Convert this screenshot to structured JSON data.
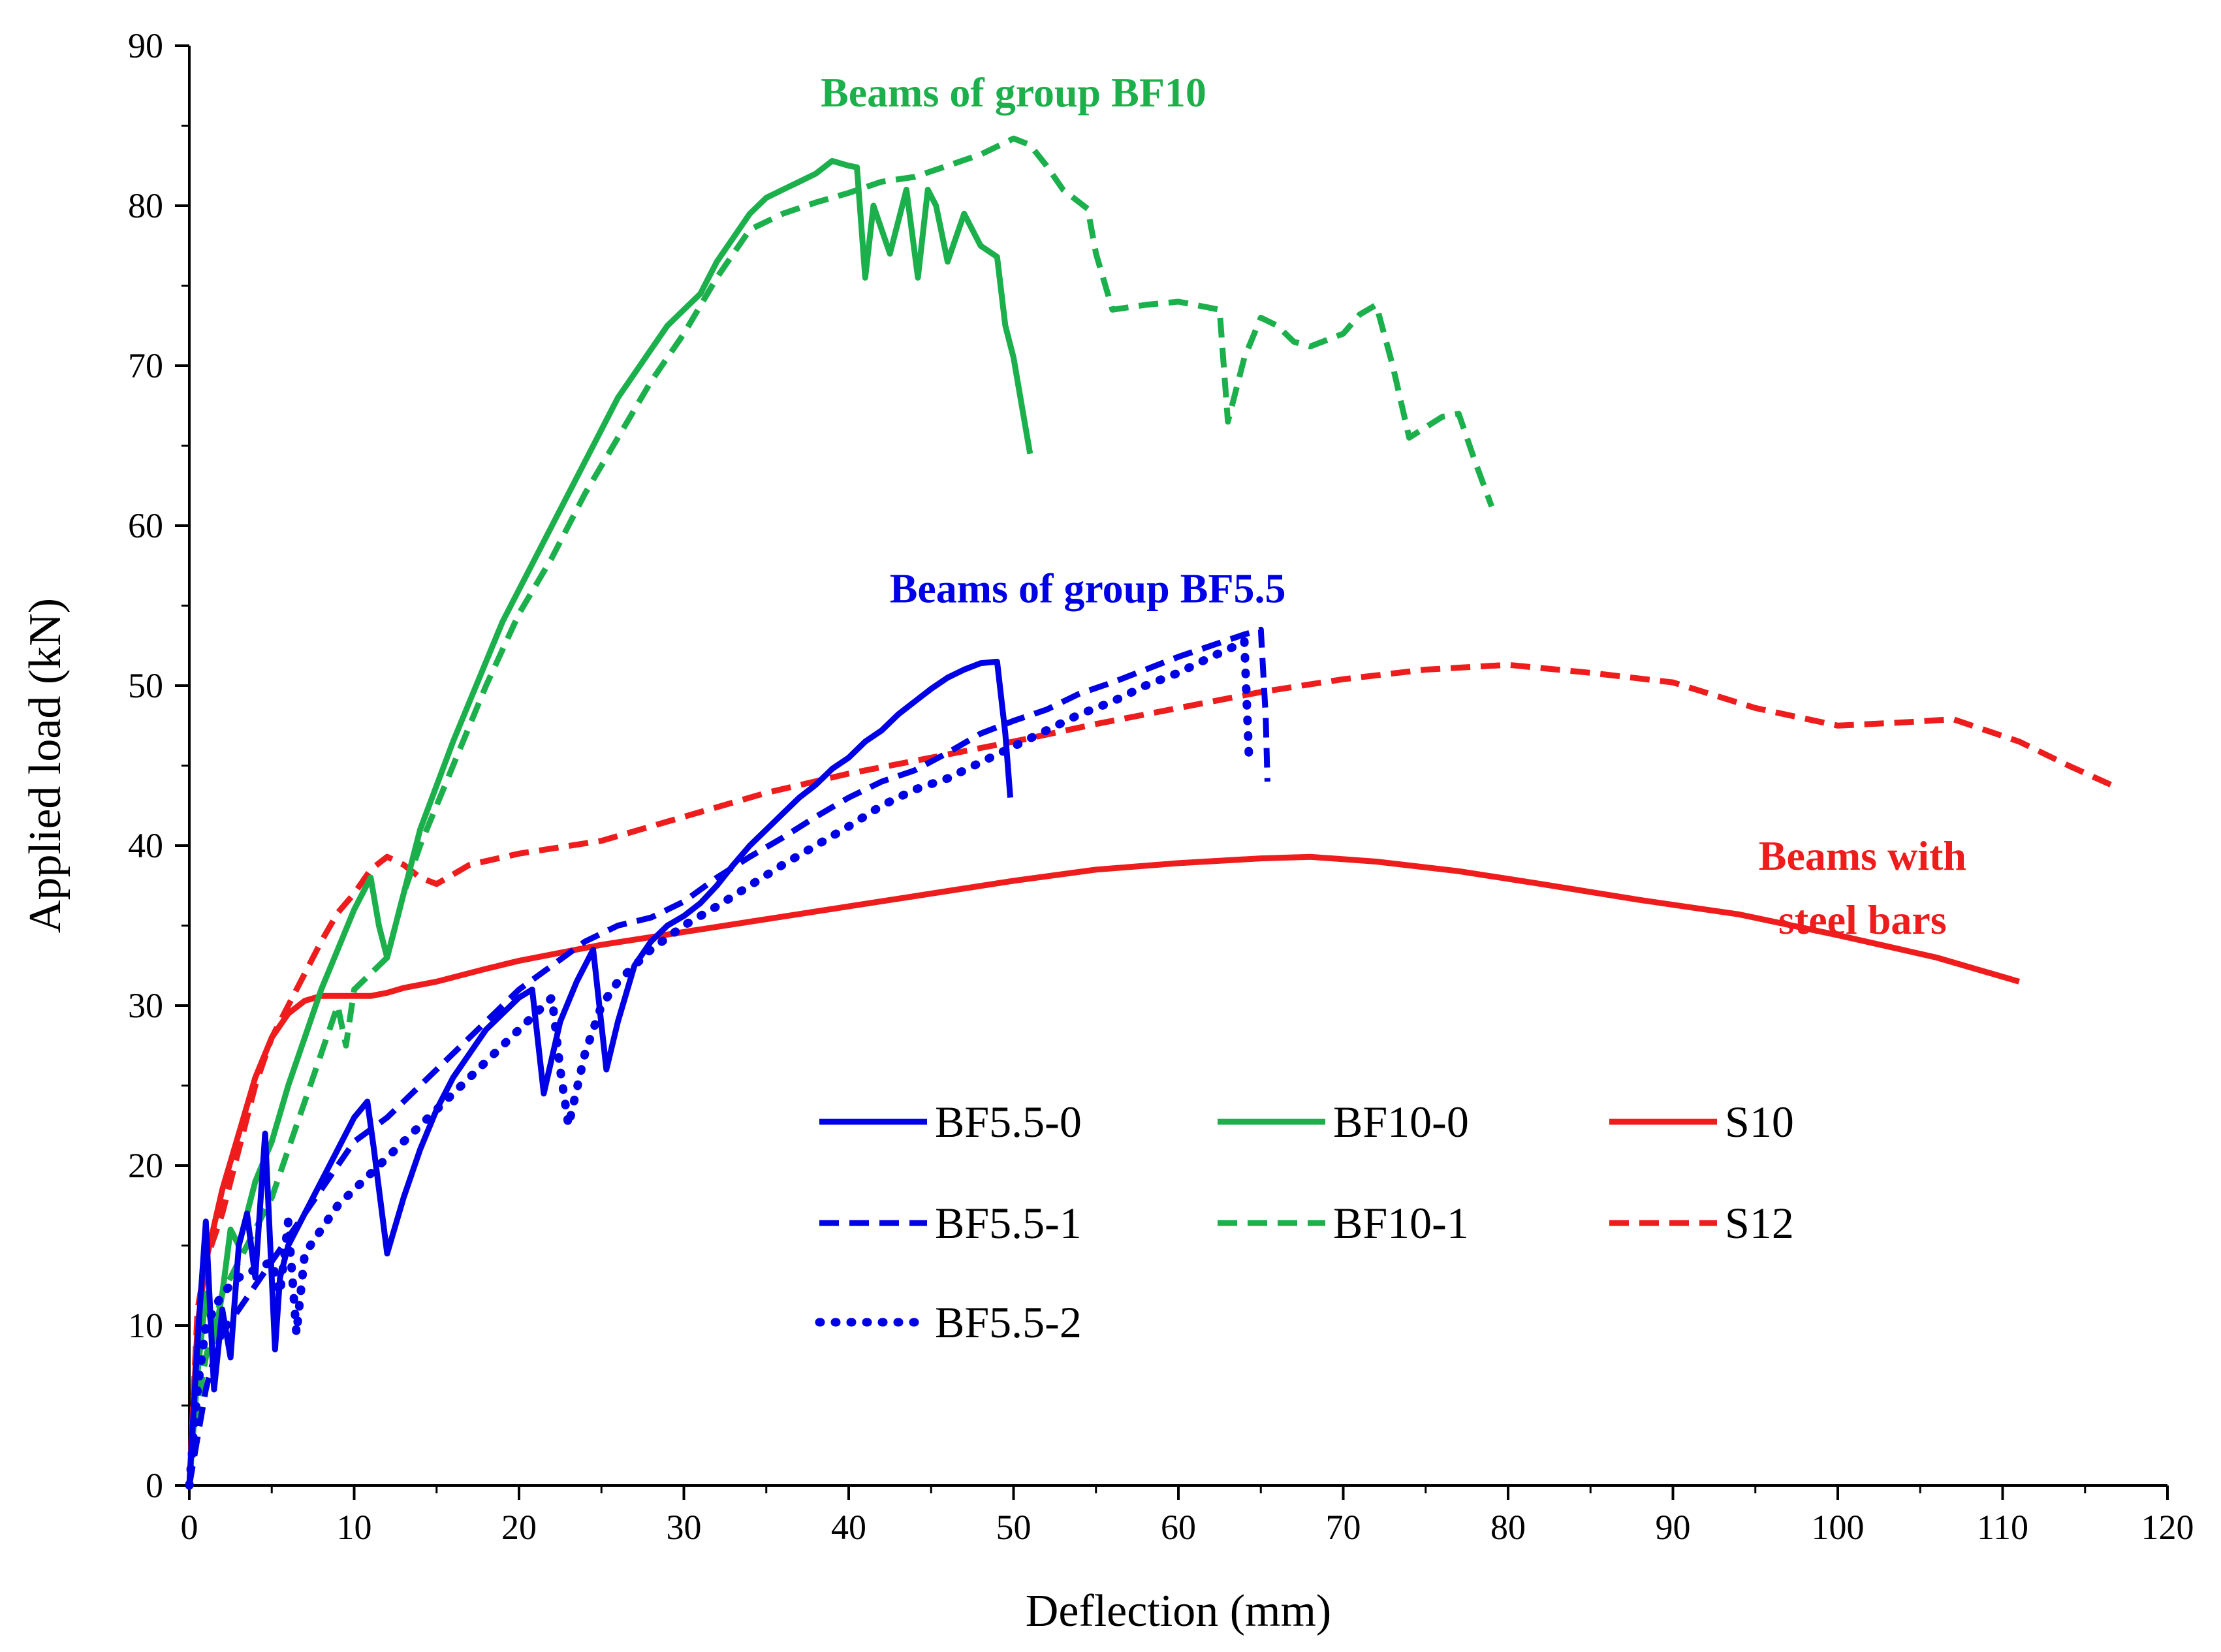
{
  "chart_data": {
    "type": "line",
    "title": "",
    "xlabel": "Deflection (mm)",
    "ylabel": "Applied load (kN)",
    "xlim": [
      0,
      120
    ],
    "ylim": [
      0,
      90
    ],
    "xticks": [
      0,
      10,
      20,
      30,
      40,
      50,
      60,
      70,
      80,
      90,
      100,
      110,
      120
    ],
    "yticks": [
      0,
      10,
      20,
      30,
      40,
      50,
      60,
      70,
      80,
      90
    ],
    "grid": false,
    "legend_position": "lower-right",
    "annotations": [
      {
        "text": "Beams of group BF10",
        "color": "#1bb04b",
        "x": 50.0,
        "y": 86.2,
        "lines": [
          "Beams of group BF10"
        ]
      },
      {
        "text": "Beams of group BF5.5",
        "color": "#0000e6",
        "x": 54.5,
        "y": 55.2,
        "lines": [
          "Beams of group BF5.5"
        ]
      },
      {
        "text": "Beams with steel bars",
        "color": "#ee1c1c",
        "x": 101.5,
        "y": 38.5,
        "lines": [
          "Beams with",
          "steel bars"
        ]
      }
    ],
    "series": [
      {
        "name": "BF5.5-0",
        "color": "#0000e6",
        "dash": "solid",
        "x": [
          0,
          0.5,
          1.0,
          1.5,
          2.0,
          2.5,
          3.0,
          3.5,
          4.0,
          4.6,
          5.2,
          5.5,
          6.0,
          7.0,
          8.0,
          9.0,
          10.0,
          10.8,
          11.2,
          12.0,
          13.0,
          14.0,
          15.0,
          16.0,
          17.0,
          18.0,
          19.0,
          20.0,
          20.8,
          21.5,
          22.5,
          23.5,
          24.5,
          25.3,
          26.0,
          27.0,
          28.0,
          29.0,
          30.0,
          31.0,
          32.0,
          33.0,
          34.0,
          35.0,
          36.0,
          37.0,
          38.0,
          39.0,
          40.0,
          41.0,
          42.0,
          43.0,
          44.0,
          45.0,
          46.0,
          47.0,
          48.0,
          49.0,
          49.5,
          49.8
        ],
        "y": [
          0,
          9,
          16.5,
          6,
          11,
          8,
          15,
          17,
          13,
          22,
          8.5,
          13,
          15,
          17,
          19,
          21,
          23,
          24,
          21,
          14.5,
          18,
          21,
          23.5,
          25.5,
          27,
          28.5,
          29.5,
          30.5,
          31,
          24.5,
          29,
          31.5,
          33.5,
          26,
          29,
          32.5,
          34.0,
          35.0,
          35.6,
          36.4,
          37.5,
          38.8,
          40.0,
          41.0,
          42.0,
          43.0,
          43.8,
          44.8,
          45.5,
          46.5,
          47.2,
          48.2,
          49.0,
          49.8,
          50.5,
          51.0,
          51.4,
          51.5,
          47.0,
          43.0
        ]
      },
      {
        "name": "BF5.5-1",
        "color": "#0000e6",
        "dash": "dash",
        "x": [
          0,
          0.5,
          1.0,
          1.5,
          2.0,
          3.0,
          4.0,
          5.0,
          6.0,
          7.0,
          8.0,
          9.0,
          10.0,
          12.0,
          14.0,
          16.0,
          18.0,
          20.0,
          22.0,
          24.0,
          26.0,
          28.0,
          30.0,
          32.0,
          34.0,
          36.0,
          38.0,
          40.0,
          42.0,
          44.0,
          46.0,
          48.0,
          50.0,
          52.0,
          54.0,
          56.0,
          58.0,
          60.0,
          62.0,
          64.0,
          65.0,
          65.3,
          65.4
        ],
        "y": [
          0,
          3,
          6,
          8,
          9.5,
          11,
          12.5,
          14,
          15.5,
          17,
          18.5,
          20,
          21.5,
          23,
          25,
          27,
          29,
          31,
          32.5,
          34,
          35,
          35.5,
          36.5,
          38,
          39.3,
          40.5,
          41.8,
          43,
          44,
          44.7,
          45.8,
          47,
          47.8,
          48.5,
          49.5,
          50.2,
          51.0,
          51.8,
          52.5,
          53.2,
          53.5,
          48.0,
          44.0
        ]
      },
      {
        "name": "BF5.5-2",
        "color": "#0000e6",
        "dash": "dot",
        "x": [
          0,
          0.5,
          1.0,
          2.0,
          3.0,
          4.0,
          5.0,
          5.5,
          6.0,
          6.5,
          7.0,
          8.0,
          9.0,
          10.0,
          11.0,
          12.0,
          13.0,
          14.0,
          15.0,
          16.0,
          18.0,
          20.0,
          21.0,
          22.0,
          22.5,
          23.0,
          24.0,
          25.0,
          26.0,
          27.0,
          28.0,
          30.0,
          32.0,
          34.0,
          36.0,
          38.0,
          40.0,
          42.0,
          44.0,
          46.0,
          48.0,
          50.0,
          52.0,
          54.0,
          56.0,
          58.0,
          60.0,
          62.0,
          63.5,
          64.0,
          64.3
        ],
        "y": [
          0,
          6,
          10,
          12,
          13,
          13.5,
          14,
          12,
          16.5,
          9.5,
          14.5,
          16,
          17.5,
          18.5,
          19.5,
          20.5,
          21.5,
          22.5,
          23.5,
          24.5,
          26.5,
          28.5,
          29.5,
          30.5,
          26,
          22.5,
          27,
          30,
          31.5,
          32.5,
          33.5,
          35.0,
          36.2,
          37.5,
          38.8,
          40,
          41.2,
          42.5,
          43.5,
          44.2,
          45.2,
          46.2,
          47.2,
          48.2,
          49.0,
          50.0,
          50.8,
          51.8,
          52.5,
          52.8,
          45.0
        ]
      },
      {
        "name": "BF10-0",
        "color": "#1bb04b",
        "dash": "solid",
        "x": [
          0,
          0.5,
          1.0,
          1.5,
          2.0,
          2.5,
          3.0,
          3.5,
          4.0,
          5.0,
          6.0,
          7.0,
          8.0,
          9.0,
          10.0,
          11.0,
          11.5,
          12.0,
          13.0,
          14.0,
          16.0,
          18.0,
          19.0,
          20.0,
          22.0,
          24.0,
          26.0,
          28.0,
          29.0,
          30.0,
          31.0,
          32.0,
          33.0,
          34.0,
          35.0,
          36.0,
          37.0,
          38.0,
          39.0,
          40.0,
          40.5,
          41.0,
          41.5,
          42.5,
          43.5,
          44.2,
          44.8,
          45.3,
          46.0,
          47.0,
          48.0,
          49.0,
          49.5,
          50.0,
          50.5,
          51.0
        ],
        "y": [
          0,
          7,
          12,
          9,
          12,
          16,
          15,
          17,
          19,
          21.5,
          25,
          28,
          31,
          33.5,
          36,
          38,
          35,
          33,
          37,
          41,
          46.5,
          51.5,
          54,
          56,
          60,
          64,
          68,
          71,
          72.5,
          73.5,
          74.5,
          76.5,
          78.0,
          79.5,
          80.5,
          81.0,
          81.5,
          82.0,
          82.8,
          82.5,
          82.4,
          75.5,
          80.0,
          77.0,
          81.0,
          75.5,
          81.0,
          80.0,
          76.5,
          79.5,
          77.5,
          76.8,
          72.5,
          70.5,
          67.5,
          64.5
        ]
      },
      {
        "name": "BF10-1",
        "color": "#1bb04b",
        "dash": "dash",
        "x": [
          0,
          0.5,
          1.0,
          1.5,
          2.0,
          3.0,
          4.0,
          5.0,
          6.0,
          7.0,
          8.0,
          9.0,
          9.5,
          10.0,
          11.0,
          12.0,
          13.0,
          14.0,
          16.0,
          18.0,
          20.0,
          22.0,
          24.0,
          26.0,
          28.0,
          30.0,
          32.0,
          34.0,
          36.0,
          38.0,
          40.0,
          42.0,
          44.0,
          46.0,
          48.0,
          50.0,
          51.0,
          52.0,
          53.0,
          54.5,
          55.0,
          56.0,
          58.0,
          60.0,
          61.0,
          62.5,
          63.0,
          64.0,
          65.0,
          66.0,
          67.0,
          68.0,
          70.0,
          71.0,
          72.0,
          73.0,
          74.0,
          76.0,
          77.0,
          78.0,
          79.0
        ],
        "y": [
          0,
          5,
          8,
          10,
          12,
          14,
          16,
          18,
          21,
          24,
          27,
          30,
          27.5,
          31,
          32,
          33,
          37,
          40,
          45,
          50,
          54.5,
          58.0,
          62,
          65.5,
          69,
          72,
          75.5,
          78.5,
          79.5,
          80.2,
          80.8,
          81.5,
          81.8,
          82.5,
          83.2,
          84.2,
          83.8,
          82.5,
          81.0,
          79.8,
          77.0,
          73.5,
          73.8,
          74.0,
          73.8,
          73.5,
          66.5,
          70.5,
          73.0,
          72.5,
          71.5,
          71.2,
          72.0,
          73.2,
          73.8,
          70.0,
          65.5,
          66.8,
          67.0,
          64.0,
          61.2
        ]
      },
      {
        "name": "S10",
        "color": "#ee1c1c",
        "dash": "solid",
        "x": [
          0,
          0.5,
          1.0,
          2.0,
          3.0,
          4.0,
          5.0,
          6.0,
          7.0,
          8.0,
          9.0,
          10.0,
          11.0,
          12.0,
          13.0,
          15.0,
          18.0,
          20.0,
          25.0,
          30.0,
          35.0,
          40.0,
          45.0,
          50.0,
          55.0,
          60.0,
          65.0,
          68.0,
          72.0,
          77.0,
          82.0,
          88.0,
          94.0,
          100.0,
          106.0,
          111.0
        ],
        "y": [
          0,
          10,
          14,
          18.5,
          22,
          25.5,
          28,
          29.5,
          30.3,
          30.6,
          30.6,
          30.6,
          30.6,
          30.8,
          31.1,
          31.5,
          32.3,
          32.8,
          33.8,
          34.6,
          35.4,
          36.2,
          37.0,
          37.8,
          38.5,
          38.9,
          39.2,
          39.3,
          39.0,
          38.4,
          37.6,
          36.6,
          35.7,
          34.4,
          33.0,
          31.5
        ]
      },
      {
        "name": "S12",
        "color": "#ee1c1c",
        "dash": "dash",
        "x": [
          0,
          0.5,
          1.0,
          2.0,
          3.0,
          4.0,
          5.0,
          6.0,
          7.0,
          8.0,
          9.0,
          10.0,
          11.0,
          12.0,
          13.0,
          14.0,
          15.0,
          17.0,
          20.0,
          25.0,
          30.0,
          35.0,
          40.0,
          45.0,
          50.0,
          55.0,
          60.0,
          65.0,
          70.0,
          75.0,
          80.0,
          85.0,
          90.0,
          95.0,
          100.0,
          104.0,
          107.0,
          111.0,
          114.0,
          117.0
        ],
        "y": [
          0,
          11,
          14,
          17,
          21,
          25,
          28,
          30,
          32,
          34,
          35.8,
          37,
          38.5,
          39.3,
          38.8,
          38.0,
          37.6,
          38.8,
          39.5,
          40.3,
          41.8,
          43.3,
          44.5,
          45.5,
          46.5,
          47.6,
          48.6,
          49.6,
          50.4,
          51.0,
          51.3,
          50.8,
          50.2,
          48.6,
          47.5,
          47.7,
          47.9,
          46.5,
          45.0,
          43.6
        ]
      }
    ]
  }
}
